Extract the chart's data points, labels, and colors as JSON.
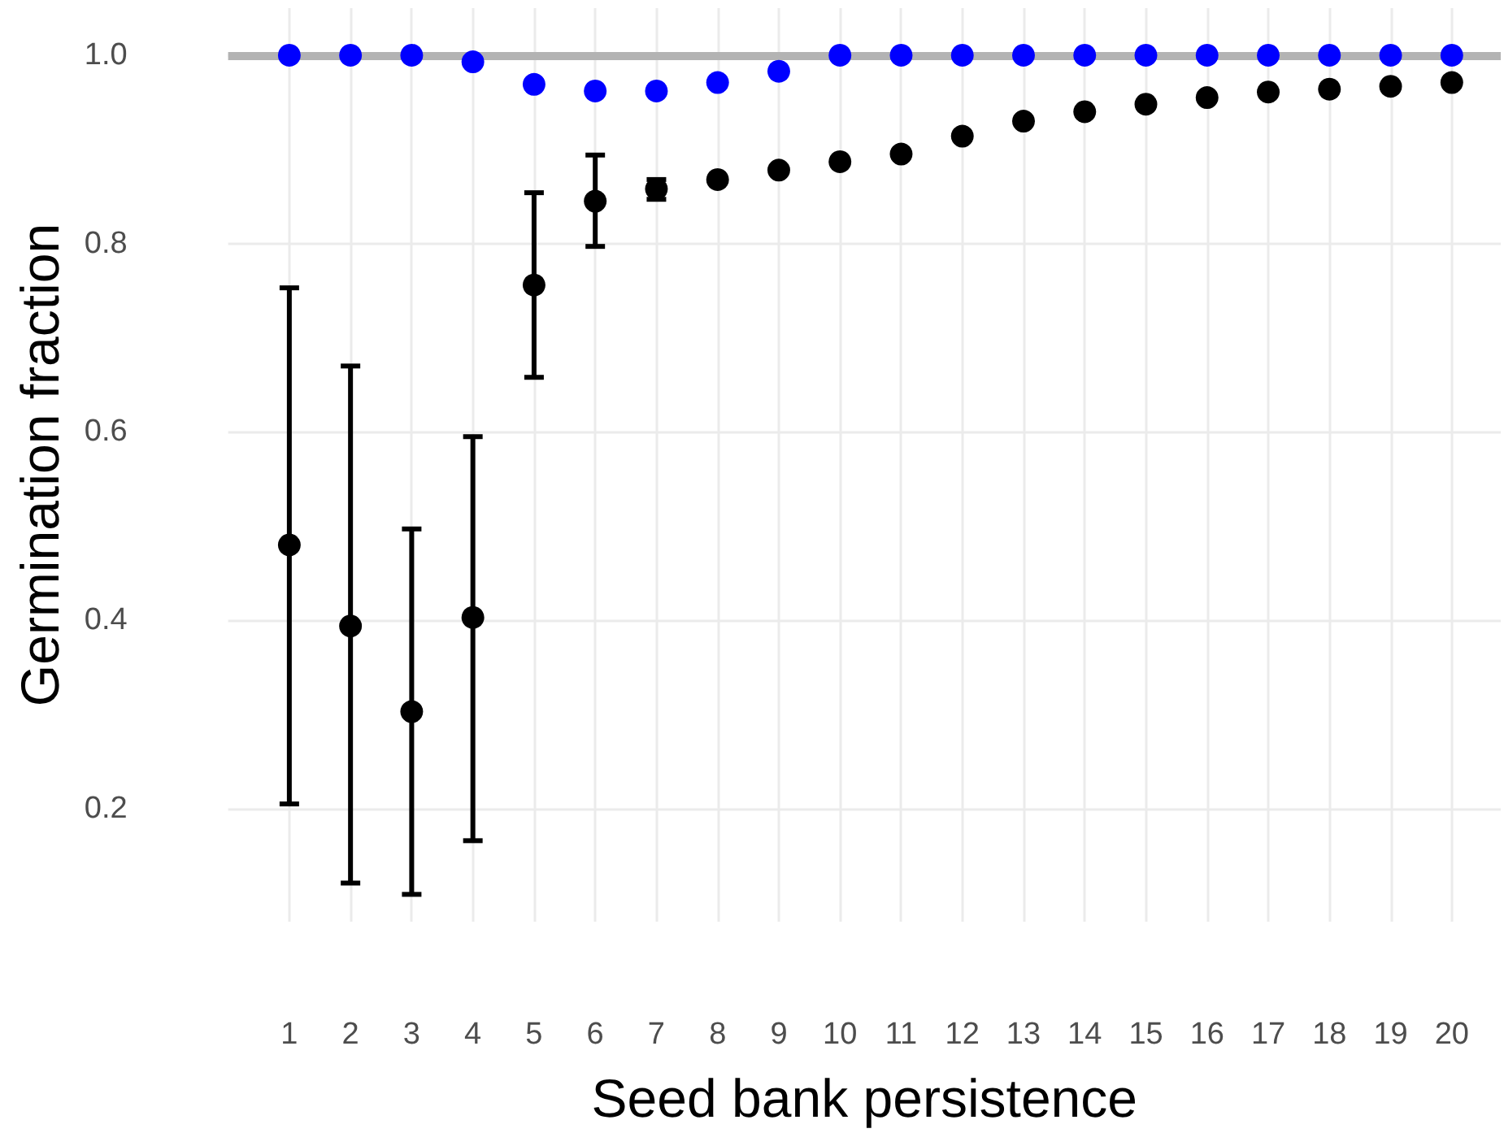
{
  "chart_data": {
    "type": "scatter",
    "xlabel": "Seed bank persistence",
    "ylabel": "Germination fraction",
    "x": [
      1,
      2,
      3,
      4,
      5,
      6,
      7,
      8,
      9,
      10,
      11,
      12,
      13,
      14,
      15,
      16,
      17,
      18,
      19,
      20
    ],
    "series": [
      {
        "color": "#000000",
        "values": [
          0.48,
          0.394,
          0.303,
          0.403,
          0.756,
          0.845,
          0.858,
          0.868,
          0.878,
          0.887,
          0.895,
          0.914,
          0.93,
          0.94,
          0.948,
          0.955,
          0.961,
          0.964,
          0.967,
          0.971
        ],
        "errors": [
          [
            0.205,
            0.753
          ],
          [
            0.121,
            0.67
          ],
          [
            0.109,
            0.497
          ],
          [
            0.166,
            0.595
          ],
          [
            0.658,
            0.854
          ],
          [
            0.797,
            0.894
          ],
          [
            0.847,
            0.868
          ],
          null,
          null,
          null,
          null,
          null,
          null,
          null,
          null,
          null,
          null,
          null,
          null,
          null
        ]
      },
      {
        "color": "#0000ff",
        "values": [
          1.0,
          1.0,
          1.0,
          0.993,
          0.969,
          0.962,
          0.962,
          0.971,
          0.983,
          1.0,
          1.0,
          1.0,
          1.0,
          1.0,
          1.0,
          1.0,
          1.0,
          1.0,
          1.0,
          1.0
        ]
      }
    ],
    "xlim": [
      0,
      20.8
    ],
    "xticks": [
      1,
      2,
      3,
      4,
      5,
      6,
      7,
      8,
      9,
      10,
      11,
      12,
      13,
      14,
      15,
      16,
      17,
      18,
      19,
      20
    ],
    "ylim": [
      0.08,
      1.05
    ],
    "yticks": [
      0.2,
      0.4,
      0.6,
      0.8,
      {
        "value": 1,
        "label": "1.0"
      }
    ],
    "ref_lines": [
      {
        "axis": "y",
        "value": 1.0,
        "color": "#b3b3b3"
      }
    ],
    "grid": true,
    "marker": "circle"
  }
}
